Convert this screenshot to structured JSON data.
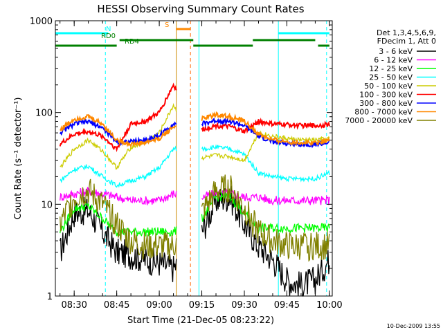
{
  "chart_data": {
    "type": "line",
    "title": "HESSI Observing Summary Count Rates",
    "xlabel": "Start Time (21-Dec-05 08:23:22)",
    "ylabel": "Count Rate (s⁻¹ detector⁻¹)",
    "y_scale": "log",
    "ylim": [
      1,
      1000
    ],
    "xlim": [
      "08:23:22",
      "10:01:00"
    ],
    "x_ticks": [
      "08:30",
      "08:45",
      "09:00",
      "09:15",
      "09:30",
      "09:45",
      "10:00"
    ],
    "y_ticks": [
      "1",
      "10",
      "100",
      "1000"
    ],
    "grid": false,
    "legend_position": "right",
    "legend_header": [
      "Det 1,3,4,5,6,9,",
      "FDecim 1, Att 0"
    ],
    "footer_timestamp": "10-Dec-2009 13:55",
    "gap": [
      "09:06",
      "09:15"
    ],
    "series": [
      {
        "name": "3 - 6 keV",
        "color": "#000000",
        "x": [
          "08:25",
          "08:30",
          "08:35",
          "08:40",
          "08:45",
          "08:50",
          "08:55",
          "09:00",
          "09:05",
          "09:15",
          "09:20",
          "09:25",
          "09:30",
          "09:35",
          "09:40",
          "09:45",
          "09:50",
          "09:55",
          "10:00"
        ],
        "values": [
          3.0,
          8.0,
          8.5,
          5.0,
          3.0,
          2.8,
          2.5,
          2.3,
          2.0,
          5.0,
          11.0,
          12.0,
          6.0,
          3.5,
          2.5,
          1.5,
          1.3,
          1.5,
          2.5
        ]
      },
      {
        "name": "6 - 12 keV",
        "color": "#ff00ff",
        "x": [
          "08:25",
          "08:30",
          "08:35",
          "08:40",
          "08:45",
          "08:50",
          "08:55",
          "09:00",
          "09:05",
          "09:15",
          "09:20",
          "09:25",
          "09:30",
          "09:35",
          "09:40",
          "09:45",
          "09:50",
          "09:55",
          "10:00"
        ],
        "values": [
          12,
          13,
          14,
          13,
          12,
          11,
          11,
          11,
          13,
          12,
          13,
          13,
          12,
          12,
          11,
          11,
          11,
          11,
          11
        ]
      },
      {
        "name": "12 - 25 keV",
        "color": "#00ff00",
        "x": [
          "08:25",
          "08:30",
          "08:35",
          "08:40",
          "08:45",
          "08:50",
          "08:55",
          "09:00",
          "09:05",
          "09:15",
          "09:20",
          "09:25",
          "09:30",
          "09:35",
          "09:40",
          "09:45",
          "09:50",
          "09:55",
          "10:00"
        ],
        "values": [
          5.0,
          9.0,
          9.5,
          7.0,
          5.0,
          5.0,
          5.0,
          5.0,
          5.0,
          7.0,
          12.0,
          12.0,
          8.0,
          5.5,
          5.5,
          5.5,
          5.5,
          5.5,
          5.5
        ]
      },
      {
        "name": "25 - 50 keV",
        "color": "#00ffff",
        "x": [
          "08:25",
          "08:30",
          "08:35",
          "08:40",
          "08:45",
          "08:50",
          "08:55",
          "09:00",
          "09:05",
          "09:15",
          "09:20",
          "09:25",
          "09:30",
          "09:35",
          "09:40",
          "09:45",
          "09:50",
          "09:55",
          "10:00"
        ],
        "values": [
          18,
          24,
          26,
          20,
          16,
          18,
          20,
          25,
          40,
          40,
          42,
          40,
          35,
          22,
          20,
          19,
          19,
          19,
          22
        ]
      },
      {
        "name": "50 - 100 keV",
        "color": "#cccc00",
        "x": [
          "08:25",
          "08:30",
          "08:35",
          "08:40",
          "08:45",
          "08:50",
          "08:55",
          "09:00",
          "09:05",
          "09:15",
          "09:20",
          "09:25",
          "09:30",
          "09:35",
          "09:40",
          "09:45",
          "09:50",
          "09:55",
          "10:00"
        ],
        "values": [
          25,
          40,
          50,
          38,
          25,
          42,
          47,
          60,
          120,
          32,
          34,
          33,
          30,
          60,
          55,
          52,
          50,
          50,
          52
        ]
      },
      {
        "name": "100 - 300 keV",
        "color": "#ff0000",
        "x": [
          "08:25",
          "08:30",
          "08:35",
          "08:40",
          "08:45",
          "08:50",
          "08:55",
          "09:00",
          "09:05",
          "09:15",
          "09:20",
          "09:25",
          "09:30",
          "09:35",
          "09:40",
          "09:45",
          "09:50",
          "09:55",
          "10:00"
        ],
        "values": [
          45,
          58,
          62,
          55,
          40,
          75,
          80,
          100,
          200,
          65,
          72,
          70,
          62,
          80,
          75,
          74,
          72,
          72,
          74
        ]
      },
      {
        "name": "300 - 800 keV",
        "color": "#0000ff",
        "x": [
          "08:25",
          "08:30",
          "08:35",
          "08:40",
          "08:45",
          "08:50",
          "08:55",
          "09:00",
          "09:05",
          "09:15",
          "09:20",
          "09:25",
          "09:30",
          "09:35",
          "09:40",
          "09:45",
          "09:50",
          "09:55",
          "10:00"
        ],
        "values": [
          60,
          75,
          80,
          68,
          48,
          48,
          50,
          56,
          75,
          75,
          82,
          80,
          72,
          55,
          48,
          46,
          45,
          45,
          47
        ]
      },
      {
        "name": "800 - 7000 keV",
        "color": "#ff8800",
        "x": [
          "08:25",
          "08:30",
          "08:35",
          "08:40",
          "08:45",
          "08:50",
          "08:55",
          "09:00",
          "09:05",
          "09:15",
          "09:20",
          "09:25",
          "09:30",
          "09:35",
          "09:40",
          "09:45",
          "09:50",
          "09:55",
          "10:00"
        ],
        "values": [
          65,
          85,
          90,
          75,
          50,
          45,
          47,
          52,
          70,
          85,
          95,
          90,
          80,
          58,
          50,
          48,
          47,
          47,
          50
        ]
      },
      {
        "name": "7000 - 20000 keV",
        "color": "#808000",
        "x": [
          "08:25",
          "08:30",
          "08:35",
          "08:40",
          "08:45",
          "08:50",
          "08:55",
          "09:00",
          "09:05",
          "09:15",
          "09:20",
          "09:25",
          "09:30",
          "09:35",
          "09:40",
          "09:45",
          "09:50",
          "09:55",
          "10:00"
        ],
        "values": [
          6.0,
          12.0,
          14.0,
          10.0,
          6.0,
          4.0,
          3.5,
          3.5,
          3.5,
          8.0,
          14.0,
          15.0,
          9.0,
          5.0,
          4.0,
          3.5,
          3.5,
          3.5,
          3.5
        ]
      }
    ],
    "flag_bars": [
      {
        "label": "N",
        "color": "#00ffff",
        "segments": [
          [
            "08:23:22",
            "08:42"
          ],
          [
            "09:42",
            "10:00"
          ]
        ]
      },
      {
        "label": "RD0",
        "color": "#008000",
        "segments": [
          [
            "08:46",
            "09:12"
          ],
          [
            "09:33",
            "09:55"
          ]
        ]
      },
      {
        "label": "RD4",
        "color": "#008000",
        "segments": [
          [
            "08:23:22",
            "08:45"
          ],
          [
            "09:12",
            "09:33"
          ],
          [
            "09:56",
            "10:00"
          ]
        ]
      },
      {
        "label": "S",
        "color": "#ff8800",
        "segments": [
          [
            "09:06",
            "09:11"
          ]
        ]
      }
    ],
    "vertical_lines": [
      {
        "time": "08:23:22",
        "color": "#00ffff",
        "style": "solid"
      },
      {
        "time": "08:41",
        "color": "#00ffff",
        "style": "dashed"
      },
      {
        "time": "09:06",
        "color": "#cc8800",
        "style": "solid"
      },
      {
        "time": "09:11",
        "color": "#ff6600",
        "style": "dashed"
      },
      {
        "time": "09:14",
        "color": "#00ffff",
        "style": "solid"
      },
      {
        "time": "09:42",
        "color": "#00ffff",
        "style": "solid"
      },
      {
        "time": "09:59",
        "color": "#00ffff",
        "style": "dashed"
      }
    ]
  }
}
